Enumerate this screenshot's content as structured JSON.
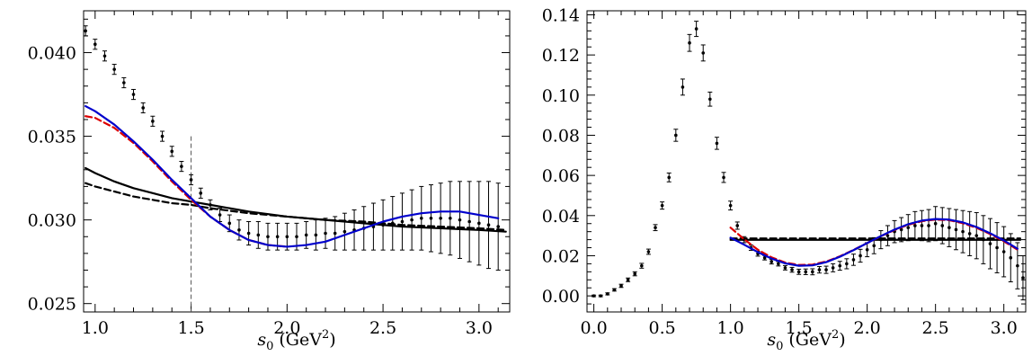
{
  "chart_data": [
    {
      "type": "line",
      "xlabel": "s0 (GeV2)",
      "xlabel_parts": {
        "base": "s",
        "sub": "0",
        "unit_open": " (GeV",
        "sup": "2",
        "unit_close": ")"
      },
      "xlim": [
        0.94,
        3.16
      ],
      "ylim": [
        0.0245,
        0.0425
      ],
      "xticks": [
        1.0,
        1.5,
        2.0,
        2.5,
        3.0
      ],
      "xtick_labels": [
        "1.0",
        "1.5",
        "2.0",
        "2.5",
        "3.0"
      ],
      "yticks": [
        0.025,
        0.03,
        0.035,
        0.04
      ],
      "ytick_labels": [
        "0.025",
        "0.030",
        "0.035",
        "0.040"
      ],
      "vline_x": 1.5,
      "data_points": {
        "x": [
          0.95,
          1.0,
          1.05,
          1.1,
          1.15,
          1.2,
          1.25,
          1.3,
          1.35,
          1.4,
          1.45,
          1.5,
          1.55,
          1.6,
          1.65,
          1.7,
          1.75,
          1.8,
          1.85,
          1.9,
          1.95,
          2.0,
          2.05,
          2.1,
          2.15,
          2.2,
          2.25,
          2.3,
          2.35,
          2.4,
          2.45,
          2.5,
          2.55,
          2.6,
          2.65,
          2.7,
          2.75,
          2.8,
          2.85,
          2.9,
          2.95,
          3.0,
          3.05,
          3.1
        ],
        "y": [
          0.0413,
          0.0405,
          0.0398,
          0.039,
          0.0382,
          0.0375,
          0.0367,
          0.0359,
          0.035,
          0.0341,
          0.0332,
          0.0324,
          0.0316,
          0.0309,
          0.0303,
          0.0298,
          0.0294,
          0.0292,
          0.0291,
          0.029,
          0.029,
          0.029,
          0.029,
          0.0291,
          0.0291,
          0.0292,
          0.0292,
          0.0293,
          0.0294,
          0.0295,
          0.0296,
          0.0297,
          0.0298,
          0.0299,
          0.03,
          0.0301,
          0.0301,
          0.0301,
          0.0301,
          0.03,
          0.0299,
          0.0298,
          0.0297,
          0.0296
        ],
        "err": [
          0.0003,
          0.0003,
          0.0003,
          0.0003,
          0.0003,
          0.0003,
          0.0003,
          0.0003,
          0.0003,
          0.0003,
          0.0003,
          0.0003,
          0.0003,
          0.0003,
          0.0004,
          0.0005,
          0.0006,
          0.0007,
          0.0008,
          0.0008,
          0.0008,
          0.0008,
          0.0008,
          0.0008,
          0.0009,
          0.0009,
          0.001,
          0.0011,
          0.0012,
          0.0013,
          0.0014,
          0.0015,
          0.0016,
          0.0017,
          0.0018,
          0.0019,
          0.002,
          0.0021,
          0.0022,
          0.0023,
          0.0024,
          0.0025,
          0.0026,
          0.0026
        ]
      },
      "series": [
        {
          "color": "#0000cc",
          "dash": "solid",
          "width": 2.2,
          "x": [
            0.95,
            1.0,
            1.1,
            1.2,
            1.3,
            1.4,
            1.5,
            1.6,
            1.7,
            1.8,
            1.9,
            2.0,
            2.1,
            2.2,
            2.3,
            2.4,
            2.5,
            2.6,
            2.7,
            2.8,
            2.9,
            3.0,
            3.1
          ],
          "y": [
            0.0368,
            0.0365,
            0.0357,
            0.0347,
            0.0336,
            0.0324,
            0.0313,
            0.0302,
            0.0294,
            0.0288,
            0.0285,
            0.0284,
            0.0285,
            0.0287,
            0.0291,
            0.0295,
            0.0299,
            0.0302,
            0.0304,
            0.0305,
            0.0305,
            0.0303,
            0.0301
          ]
        },
        {
          "color": "#dd0000",
          "dash": "dashed",
          "width": 2.2,
          "x": [
            0.95,
            1.0,
            1.1,
            1.2,
            1.3,
            1.4,
            1.5,
            1.6,
            1.7,
            1.8,
            1.9,
            2.0
          ],
          "y": [
            0.0362,
            0.0361,
            0.0355,
            0.0346,
            0.0335,
            0.0323,
            0.0312,
            0.0302,
            0.0294,
            0.0288,
            0.0285,
            0.0284
          ]
        },
        {
          "color": "#000000",
          "dash": "solid",
          "width": 2.2,
          "x": [
            0.95,
            1.0,
            1.1,
            1.2,
            1.3,
            1.4,
            1.5,
            1.6,
            1.8,
            2.0,
            2.2,
            2.4,
            2.6,
            2.8,
            3.0,
            3.14
          ],
          "y": [
            0.0331,
            0.0328,
            0.0323,
            0.0319,
            0.0316,
            0.0313,
            0.0311,
            0.0309,
            0.0305,
            0.0302,
            0.03,
            0.0298,
            0.0296,
            0.0295,
            0.0294,
            0.0293
          ]
        },
        {
          "color": "#000000",
          "dash": "dashed",
          "width": 2.2,
          "x": [
            0.95,
            1.0,
            1.1,
            1.2,
            1.3,
            1.4,
            1.5,
            1.6,
            1.8,
            2.0,
            2.2,
            2.4,
            2.6,
            2.8,
            3.0,
            3.14
          ],
          "y": [
            0.0322,
            0.032,
            0.0317,
            0.0314,
            0.0312,
            0.031,
            0.0309,
            0.0307,
            0.0304,
            0.0302,
            0.03,
            0.0299,
            0.0297,
            0.0296,
            0.0295,
            0.0294
          ]
        }
      ]
    },
    {
      "type": "line",
      "xlabel": "s0 (GeV2)",
      "xlabel_parts": {
        "base": "s",
        "sub": "0",
        "unit_open": " (GeV",
        "sup": "2",
        "unit_close": ")"
      },
      "xlim": [
        -0.05,
        3.16
      ],
      "ylim": [
        -0.008,
        0.142
      ],
      "xticks": [
        0.0,
        0.5,
        1.0,
        1.5,
        2.0,
        2.5,
        3.0
      ],
      "xtick_labels": [
        "0.0",
        "0.5",
        "1.0",
        "1.5",
        "2.0",
        "2.5",
        "3.0"
      ],
      "yticks": [
        0.0,
        0.02,
        0.04,
        0.06,
        0.08,
        0.1,
        0.12,
        0.14
      ],
      "ytick_labels": [
        "0.00",
        "0.02",
        "0.04",
        "0.06",
        "0.08",
        "0.10",
        "0.12",
        "0.14"
      ],
      "data_points": {
        "x": [
          0.0,
          0.05,
          0.1,
          0.15,
          0.2,
          0.25,
          0.3,
          0.35,
          0.4,
          0.45,
          0.5,
          0.55,
          0.6,
          0.65,
          0.7,
          0.75,
          0.8,
          0.85,
          0.9,
          0.95,
          1.0,
          1.05,
          1.1,
          1.15,
          1.2,
          1.25,
          1.3,
          1.35,
          1.4,
          1.45,
          1.5,
          1.55,
          1.6,
          1.65,
          1.7,
          1.75,
          1.8,
          1.85,
          1.9,
          1.95,
          2.0,
          2.05,
          2.1,
          2.15,
          2.2,
          2.25,
          2.3,
          2.35,
          2.4,
          2.45,
          2.5,
          2.55,
          2.6,
          2.65,
          2.7,
          2.75,
          2.8,
          2.85,
          2.9,
          2.95,
          3.0,
          3.05,
          3.1,
          3.14
        ],
        "y": [
          0.0,
          0.0,
          0.001,
          0.003,
          0.005,
          0.008,
          0.011,
          0.015,
          0.022,
          0.034,
          0.045,
          0.059,
          0.08,
          0.104,
          0.126,
          0.133,
          0.121,
          0.098,
          0.076,
          0.059,
          0.045,
          0.035,
          0.028,
          0.024,
          0.021,
          0.019,
          0.017,
          0.016,
          0.014,
          0.013,
          0.012,
          0.012,
          0.012,
          0.013,
          0.013,
          0.014,
          0.015,
          0.016,
          0.018,
          0.02,
          0.023,
          0.025,
          0.028,
          0.03,
          0.032,
          0.033,
          0.034,
          0.035,
          0.035,
          0.035,
          0.036,
          0.035,
          0.034,
          0.033,
          0.032,
          0.031,
          0.03,
          0.028,
          0.026,
          0.024,
          0.022,
          0.019,
          0.015,
          0.009
        ],
        "err": [
          0.0004,
          0.0004,
          0.0005,
          0.0006,
          0.0008,
          0.0009,
          0.001,
          0.0012,
          0.0013,
          0.0015,
          0.0018,
          0.0022,
          0.003,
          0.004,
          0.0042,
          0.0038,
          0.004,
          0.0035,
          0.003,
          0.0025,
          0.0022,
          0.0018,
          0.0015,
          0.0013,
          0.0012,
          0.0011,
          0.0011,
          0.0011,
          0.0011,
          0.0012,
          0.0013,
          0.0014,
          0.0015,
          0.0016,
          0.0018,
          0.002,
          0.0022,
          0.0025,
          0.0028,
          0.0032,
          0.0035,
          0.004,
          0.0045,
          0.005,
          0.0055,
          0.006,
          0.0065,
          0.007,
          0.0075,
          0.008,
          0.0085,
          0.009,
          0.0095,
          0.01,
          0.0105,
          0.011,
          0.0115,
          0.012,
          0.0125,
          0.0125,
          0.0125,
          0.012,
          0.0115,
          0.011
        ]
      },
      "series": [
        {
          "color": "#0000cc",
          "dash": "solid",
          "width": 2.2,
          "x": [
            1.0,
            1.1,
            1.2,
            1.3,
            1.4,
            1.5,
            1.6,
            1.7,
            1.8,
            1.9,
            2.0,
            2.1,
            2.2,
            2.3,
            2.4,
            2.5,
            2.6,
            2.7,
            2.8,
            2.9,
            3.0,
            3.1
          ],
          "y": [
            0.029,
            0.0255,
            0.0218,
            0.0186,
            0.0162,
            0.015,
            0.0152,
            0.0168,
            0.0195,
            0.0228,
            0.0263,
            0.0298,
            0.033,
            0.0357,
            0.0375,
            0.0383,
            0.038,
            0.0366,
            0.0343,
            0.0312,
            0.0276,
            0.0235
          ]
        },
        {
          "color": "#dd0000",
          "dash": "dashed",
          "width": 2.2,
          "x": [
            1.0,
            1.1,
            1.2,
            1.3,
            1.4,
            1.5,
            1.6,
            1.7,
            1.8,
            1.9,
            2.0,
            2.1,
            2.2,
            2.3,
            2.4,
            2.5,
            2.6,
            2.7,
            2.8,
            2.9,
            3.0,
            3.1
          ],
          "y": [
            0.034,
            0.0282,
            0.023,
            0.0192,
            0.0166,
            0.0154,
            0.0156,
            0.0171,
            0.0197,
            0.0229,
            0.0263,
            0.0297,
            0.0328,
            0.0354,
            0.0372,
            0.038,
            0.0377,
            0.0362,
            0.0339,
            0.0308,
            0.0272,
            0.023
          ]
        },
        {
          "color": "#000000",
          "dash": "solid",
          "width": 2.2,
          "x": [
            1.0,
            3.12
          ],
          "y": [
            0.0279,
            0.0279
          ]
        },
        {
          "color": "#000000",
          "dash": "dashed",
          "width": 2.2,
          "x": [
            1.0,
            3.12
          ],
          "y": [
            0.0286,
            0.0286
          ]
        }
      ]
    }
  ]
}
